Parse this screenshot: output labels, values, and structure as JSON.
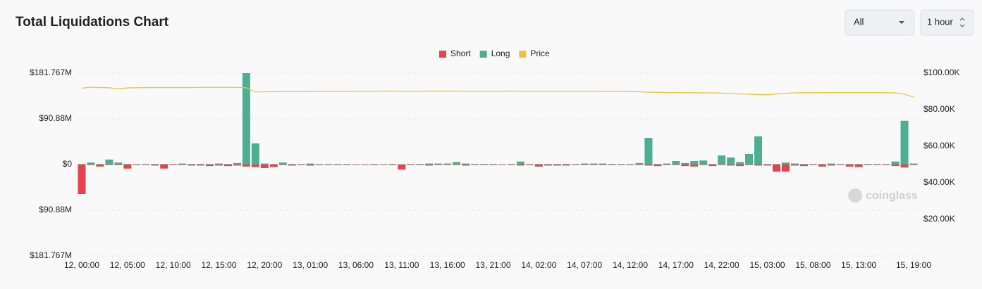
{
  "chart_data": {
    "type": "bar",
    "title": "Total Liquidations Chart",
    "categories": [
      "12, 00:00",
      null,
      null,
      null,
      null,
      "12, 05:00",
      null,
      null,
      null,
      null,
      "12, 10:00",
      null,
      null,
      null,
      null,
      "12, 15:00",
      null,
      null,
      null,
      null,
      "12, 20:00",
      null,
      null,
      null,
      null,
      "13, 01:00",
      null,
      null,
      null,
      null,
      "13, 06:00",
      null,
      null,
      null,
      null,
      "13, 11:00",
      null,
      null,
      null,
      null,
      "13, 16:00",
      null,
      null,
      null,
      null,
      "13, 21:00",
      null,
      null,
      null,
      null,
      "14, 02:00",
      null,
      null,
      null,
      null,
      "14, 07:00",
      null,
      null,
      null,
      null,
      "14, 12:00",
      null,
      null,
      null,
      null,
      "14, 17:00",
      null,
      null,
      null,
      null,
      "14, 22:00",
      null,
      null,
      null,
      null,
      "15, 03:00",
      null,
      null,
      null,
      null,
      "15, 08:00",
      null,
      null,
      null,
      null,
      "15, 13:00",
      null,
      null,
      null,
      null,
      null,
      "15, 19:00"
    ],
    "series": [
      {
        "name": "Short",
        "color": "#e8414f",
        "values": [
          -58.7,
          -1,
          -4,
          -1,
          -1,
          -8,
          -1,
          -1,
          -2,
          -8,
          -1,
          -1,
          -2,
          -2,
          -3,
          -2,
          -3,
          -2,
          -4,
          -5,
          -7,
          -5,
          -1,
          -2,
          -1,
          -2,
          -1,
          -1,
          -1,
          -1,
          -1,
          -1,
          -1,
          -1,
          -1,
          -10,
          -1,
          -1,
          -2,
          -1,
          -1,
          -1,
          -2,
          -1,
          -1,
          -1,
          -1,
          -1,
          -2,
          -1,
          -4,
          -2,
          -2,
          -2,
          -1,
          -1,
          -1,
          -1,
          -1,
          -1,
          -1,
          -1,
          -2,
          -3,
          -1,
          -1,
          -3,
          -4,
          -1,
          -3,
          -1,
          -2,
          -3,
          -1,
          -2,
          -2,
          -14,
          -14,
          -2,
          -3,
          -1,
          -4,
          -2,
          -1,
          -4,
          -5,
          -1,
          -1,
          -1,
          -3,
          -6,
          -1
        ]
      },
      {
        "name": "Long",
        "color": "#4caf93",
        "values": [
          1,
          4,
          1,
          10,
          4,
          1,
          1,
          1,
          1,
          1,
          1,
          2,
          1,
          1,
          1,
          2,
          1,
          3,
          181.767,
          42,
          2,
          1,
          4,
          1,
          1,
          2,
          1,
          1,
          1,
          1,
          0.5,
          0.5,
          1,
          0.5,
          1,
          0.5,
          1,
          1,
          2,
          2,
          2,
          5,
          2,
          1,
          1,
          1,
          0.5,
          1,
          6,
          1,
          1,
          1,
          1,
          1,
          1,
          2,
          2,
          2,
          1,
          1,
          1,
          3,
          53,
          1,
          2,
          7,
          3,
          7,
          8,
          1,
          18,
          14,
          5,
          21,
          56,
          1,
          1,
          4,
          2,
          1,
          1,
          1,
          2,
          1,
          1,
          1,
          1,
          1,
          1,
          6,
          87,
          2
        ]
      },
      {
        "name": "Price",
        "color": "#f0c040",
        "type": "line",
        "axis": "y2",
        "values": [
          91800,
          92300,
          92100,
          92000,
          91400,
          91900,
          92000,
          92100,
          92100,
          92100,
          92100,
          92100,
          92100,
          92200,
          92200,
          92200,
          92200,
          92200,
          92000,
          89700,
          89800,
          89800,
          89900,
          89900,
          89900,
          89900,
          90000,
          90000,
          90000,
          90000,
          90100,
          90100,
          90100,
          90200,
          90200,
          90100,
          90100,
          90100,
          90200,
          90200,
          90200,
          90200,
          90100,
          90100,
          90100,
          90100,
          90100,
          90200,
          90100,
          90100,
          90100,
          90100,
          90100,
          90100,
          90100,
          90100,
          90100,
          90000,
          90000,
          90000,
          89900,
          89800,
          89600,
          89500,
          89400,
          89400,
          89300,
          89300,
          89200,
          89200,
          89100,
          88800,
          88600,
          88500,
          88300,
          88200,
          88600,
          89000,
          89200,
          89300,
          89300,
          89300,
          89400,
          89400,
          89400,
          89400,
          89400,
          89400,
          89300,
          89200,
          88500,
          86900
        ]
      }
    ],
    "ylim": [
      -181.767,
      181.767
    ],
    "yticks": [
      {
        "value": 181.767,
        "label": "$181.767M"
      },
      {
        "value": 90.88,
        "label": "$90.88M"
      },
      {
        "value": 0,
        "label": "$0"
      },
      {
        "value": -90.88,
        "label": "$90.88M"
      },
      {
        "value": -181.767,
        "label": "$181.767M"
      }
    ],
    "y2lim": [
      0,
      100000
    ],
    "y2ticks": [
      {
        "value": 20000,
        "label": "$20.00K"
      },
      {
        "value": 40000,
        "label": "$40.00K"
      },
      {
        "value": 60000,
        "label": "$60.00K"
      },
      {
        "value": 80000,
        "label": "$80.00K"
      },
      {
        "value": 100000,
        "label": "$100.00K"
      }
    ],
    "grid": true,
    "legend": "top"
  },
  "controls": {
    "filter": "All",
    "interval": "1 hour"
  },
  "watermark": "coinglass"
}
